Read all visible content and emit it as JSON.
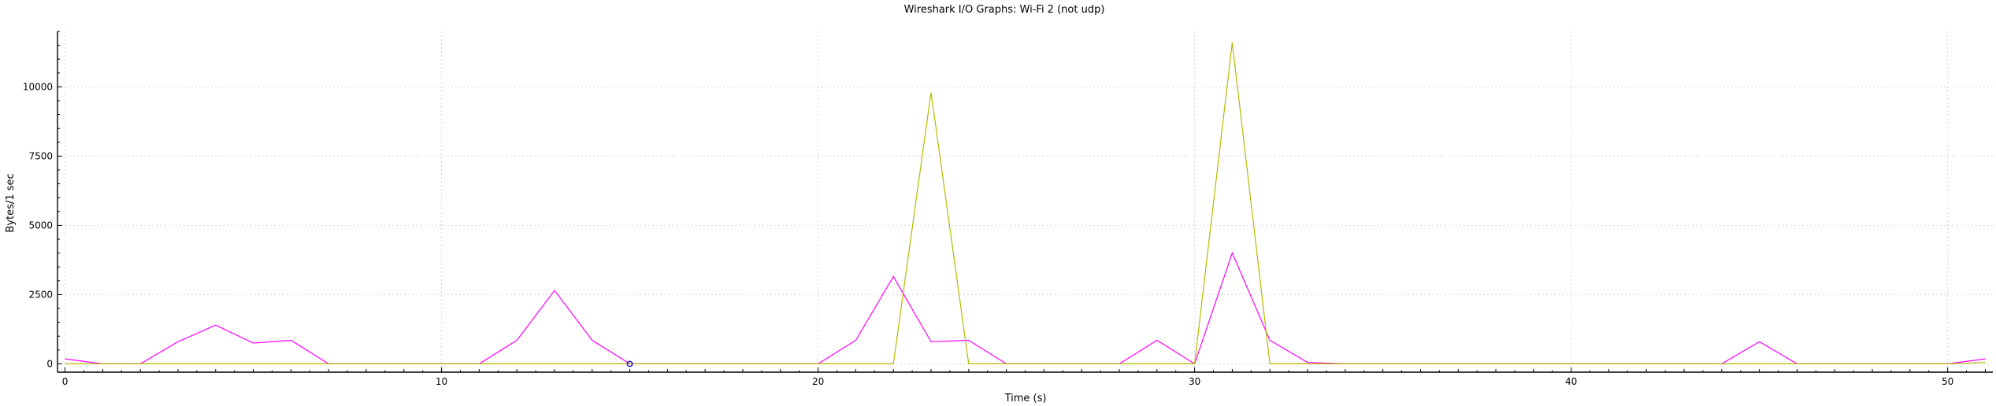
{
  "chart_data": {
    "type": "line",
    "title": "Wireshark I/O Graphs: Wi-Fi 2 (not udp)",
    "xlabel": "Time (s)",
    "ylabel": "Bytes/1 sec",
    "xlim": [
      -0.2,
      51.2
    ],
    "ylim": [
      -300,
      12000
    ],
    "x_major_ticks": [
      0,
      10,
      20,
      30,
      40,
      50
    ],
    "x_tick_labels": [
      "0",
      "10",
      "20",
      "30",
      "40",
      "50"
    ],
    "y_major_ticks": [
      0,
      2500,
      5000,
      7500,
      10000
    ],
    "y_tick_labels": [
      "0",
      "2500",
      "5000",
      "7500",
      "10000"
    ],
    "grid": true,
    "legend": "none",
    "x": [
      0,
      1,
      2,
      3,
      4,
      5,
      6,
      7,
      8,
      9,
      10,
      11,
      12,
      13,
      14,
      15,
      16,
      17,
      18,
      19,
      20,
      21,
      22,
      23,
      24,
      25,
      26,
      27,
      28,
      29,
      30,
      31,
      32,
      33,
      34,
      35,
      36,
      37,
      38,
      39,
      40,
      41,
      42,
      43,
      44,
      45,
      46,
      47,
      48,
      49,
      50,
      51
    ],
    "series": [
      {
        "color": "#ff00ff",
        "values": [
          180,
          0,
          0,
          800,
          1400,
          750,
          850,
          0,
          0,
          0,
          0,
          0,
          850,
          2650,
          850,
          0,
          0,
          0,
          0,
          0,
          0,
          850,
          3150,
          800,
          850,
          0,
          0,
          0,
          0,
          850,
          0,
          4000,
          850,
          50,
          0,
          0,
          0,
          0,
          0,
          0,
          0,
          0,
          0,
          0,
          0,
          800,
          0,
          0,
          0,
          0,
          0,
          180
        ]
      },
      {
        "color": "#b8b800",
        "values": [
          0,
          0,
          0,
          0,
          0,
          0,
          0,
          0,
          0,
          0,
          0,
          0,
          0,
          0,
          0,
          0,
          0,
          0,
          0,
          0,
          0,
          0,
          0,
          9800,
          0,
          0,
          0,
          0,
          0,
          0,
          0,
          11600,
          0,
          0,
          0,
          0,
          0,
          0,
          0,
          0,
          0,
          0,
          0,
          0,
          0,
          0,
          0,
          0,
          0,
          0,
          0,
          50
        ]
      }
    ],
    "marker": {
      "x": 15,
      "y": 0,
      "color": "#2222cc"
    }
  }
}
